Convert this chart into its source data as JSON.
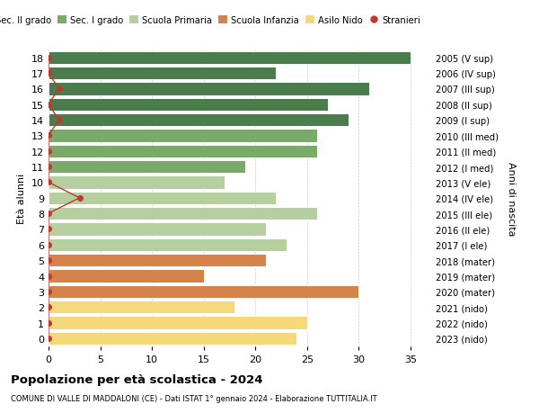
{
  "ages": [
    0,
    1,
    2,
    3,
    4,
    5,
    6,
    7,
    8,
    9,
    10,
    11,
    12,
    13,
    14,
    15,
    16,
    17,
    18
  ],
  "years": [
    "2023 (nido)",
    "2022 (nido)",
    "2021 (nido)",
    "2020 (mater)",
    "2019 (mater)",
    "2018 (mater)",
    "2017 (I ele)",
    "2016 (II ele)",
    "2015 (III ele)",
    "2014 (IV ele)",
    "2013 (V ele)",
    "2012 (I med)",
    "2011 (II med)",
    "2010 (III med)",
    "2009 (I sup)",
    "2008 (II sup)",
    "2007 (III sup)",
    "2006 (IV sup)",
    "2005 (V sup)"
  ],
  "values": [
    24,
    25,
    18,
    30,
    15,
    21,
    23,
    21,
    26,
    22,
    17,
    19,
    26,
    26,
    29,
    27,
    31,
    22,
    35
  ],
  "stranieri": [
    0,
    0,
    0,
    0,
    0,
    0,
    0,
    0,
    0,
    3,
    0,
    0,
    0,
    0,
    1,
    0,
    1,
    0,
    0
  ],
  "bar_colors": [
    "#f5d87a",
    "#f5d87a",
    "#f5d87a",
    "#d4834a",
    "#d4834a",
    "#d4834a",
    "#b5cf9e",
    "#b5cf9e",
    "#b5cf9e",
    "#b5cf9e",
    "#b5cf9e",
    "#7aaa6a",
    "#7aaa6a",
    "#7aaa6a",
    "#4a7c4e",
    "#4a7c4e",
    "#4a7c4e",
    "#4a7c4e",
    "#4a7c4e"
  ],
  "legend_labels": [
    "Sec. II grado",
    "Sec. I grado",
    "Scuola Primaria",
    "Scuola Infanzia",
    "Asilo Nido",
    "Stranieri"
  ],
  "legend_colors": [
    "#4a7c4e",
    "#7aaa6a",
    "#b5cf9e",
    "#d4834a",
    "#f5d87a",
    "#c0392b"
  ],
  "title": "Popolazione per età scolastica - 2024",
  "subtitle": "COMUNE DI VALLE DI MADDALONI (CE) - Dati ISTAT 1° gennaio 2024 - Elaborazione TUTTITALIA.IT",
  "ylabel_left": "Età alunni",
  "ylabel_right": "Anni di nascita",
  "stranieri_color": "#c0392b",
  "bg_color": "#ffffff"
}
